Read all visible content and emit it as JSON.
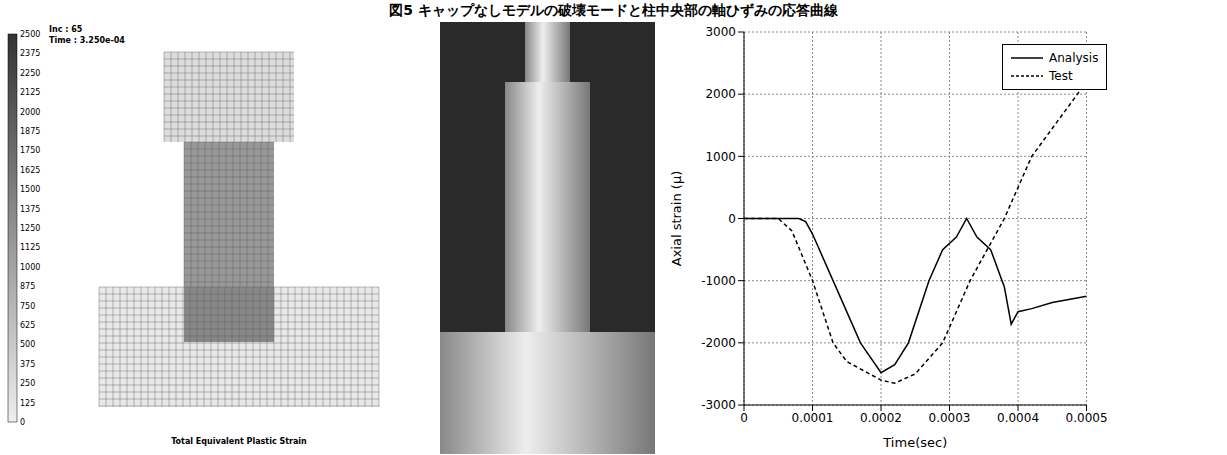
{
  "caption": "図5 キャップなしモデルの破壊モードと柱中央部の軸ひずみの応答曲線",
  "fe_model": {
    "inc": "Inc :  65",
    "time": "Time : 3.250e-04",
    "colorbar_ticks": [
      2500,
      2375,
      2250,
      2125,
      2000,
      1875,
      1750,
      1625,
      1500,
      1375,
      1250,
      1125,
      1000,
      875,
      750,
      625,
      500,
      375,
      250,
      125,
      0
    ],
    "title": "Total Equivalent Plastic Strain"
  },
  "chart_data": {
    "type": "line",
    "xlabel": "Time(sec)",
    "ylabel": "Axial strain (μ)",
    "xlim": [
      0,
      0.0005
    ],
    "xticks": [
      0,
      0.0001,
      0.0002,
      0.0003,
      0.0004,
      0.0005
    ],
    "ylim": [
      -3000,
      3000
    ],
    "yticks": [
      -3000,
      -2000,
      -1000,
      0,
      1000,
      2000,
      3000
    ],
    "grid": true,
    "legend": "upper right",
    "series": [
      {
        "name": "Analysis",
        "color": "#000000",
        "line_style": "solid",
        "x": [
          0,
          5e-05,
          8e-05,
          9e-05,
          0.0001,
          0.00013,
          0.00017,
          0.0002,
          0.00022,
          0.00024,
          0.00027,
          0.00029,
          0.00031,
          0.000325,
          0.00034,
          0.00036,
          0.00038,
          0.00039,
          0.0004,
          0.00042,
          0.00045,
          0.0005
        ],
        "values": [
          0,
          0,
          0,
          -50,
          -250,
          -1000,
          -2000,
          -2480,
          -2350,
          -2000,
          -1000,
          -500,
          -300,
          0,
          -300,
          -500,
          -1100,
          -1700,
          -1500,
          -1450,
          -1350,
          -1250
        ]
      },
      {
        "name": "Test",
        "color": "#000000",
        "line_style": "dashed",
        "x": [
          0,
          5e-05,
          7e-05,
          0.0001,
          0.00013,
          0.00015,
          0.0002,
          0.00022,
          0.00025,
          0.00029,
          0.00033,
          0.00038,
          0.00042,
          0.0005
        ],
        "values": [
          0,
          0,
          -200,
          -1000,
          -2000,
          -2300,
          -2600,
          -2650,
          -2500,
          -2000,
          -1000,
          0,
          1000,
          2200
        ]
      }
    ]
  }
}
